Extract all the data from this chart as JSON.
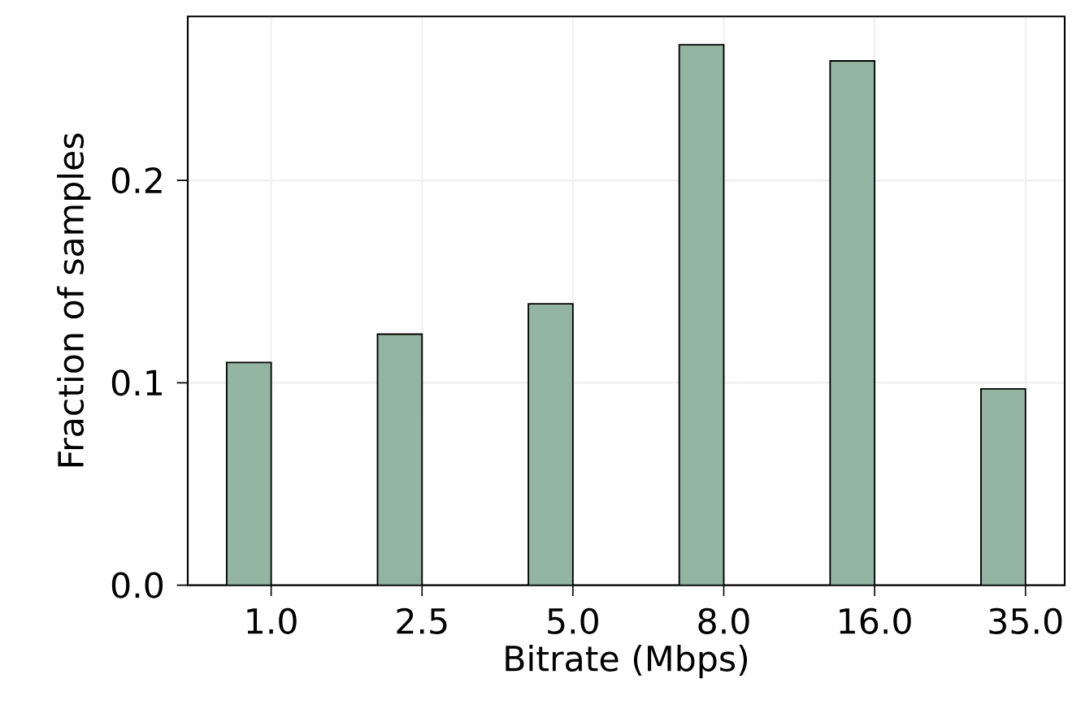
{
  "chart_data": {
    "type": "bar",
    "xlabel": "Bitrate (Mbps)",
    "ylabel": "Fraction of samples",
    "categories": [
      "1.0",
      "2.5",
      "5.0",
      "8.0",
      "16.0",
      "35.0"
    ],
    "values": [
      0.11,
      0.124,
      0.139,
      0.267,
      0.259,
      0.097
    ],
    "color": "#94b4a2",
    "ylim": [
      0,
      0.281
    ],
    "yticks": [
      {
        "value": 0,
        "label": "0.0"
      },
      {
        "value": 0.1,
        "label": "0.1"
      },
      {
        "value": 0.2,
        "label": "0.2"
      }
    ],
    "grid": true
  }
}
